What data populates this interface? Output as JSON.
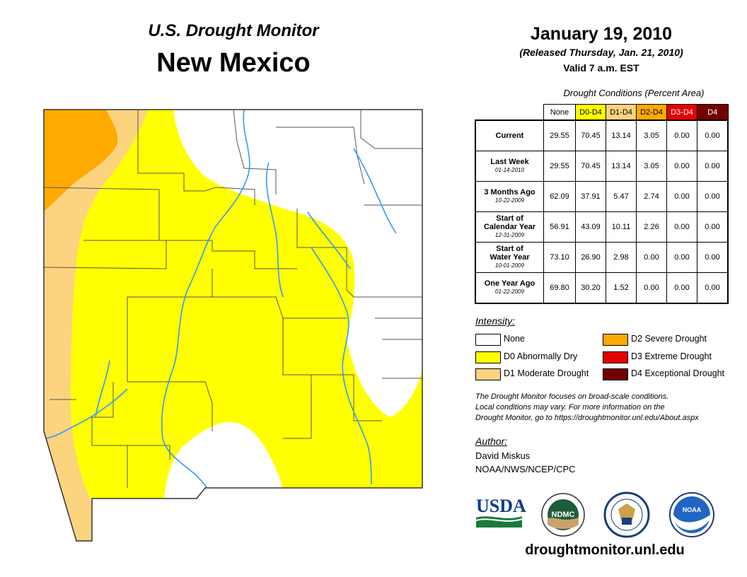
{
  "header": {
    "subtitle": "U.S. Drought Monitor",
    "title": "New Mexico",
    "date": "January 19, 2010",
    "released": "(Released Thursday, Jan. 21, 2010)",
    "valid": "Valid 7 a.m. EST"
  },
  "conditions": {
    "title": "Drought Conditions (Percent Area)",
    "columns": [
      {
        "label": "None",
        "color": "#ffffff"
      },
      {
        "label": "D0-D4",
        "color": "#ffff00"
      },
      {
        "label": "D1-D4",
        "color": "#fcd37f"
      },
      {
        "label": "D2-D4",
        "color": "#ffaa00"
      },
      {
        "label": "D3-D4",
        "color": "#e60000"
      },
      {
        "label": "D4",
        "color": "#730000"
      }
    ],
    "rows": [
      {
        "line1": "Current",
        "line2": "",
        "date": "",
        "values": [
          "29.55",
          "70.45",
          "13.14",
          "3.05",
          "0.00",
          "0.00"
        ]
      },
      {
        "line1": "Last Week",
        "line2": "",
        "date": "01-14-2010",
        "values": [
          "29.55",
          "70.45",
          "13.14",
          "3.05",
          "0.00",
          "0.00"
        ]
      },
      {
        "line1": "3 Months Ago",
        "line2": "",
        "date": "10-22-2009",
        "values": [
          "62.09",
          "37.91",
          "5.47",
          "2.74",
          "0.00",
          "0.00"
        ]
      },
      {
        "line1": "Start of",
        "line2": "Calendar Year",
        "date": "12-31-2009",
        "values": [
          "56.91",
          "43.09",
          "10.11",
          "2.26",
          "0.00",
          "0.00"
        ]
      },
      {
        "line1": "Start of",
        "line2": "Water Year",
        "date": "10-01-2009",
        "values": [
          "73.10",
          "26.90",
          "2.98",
          "0.00",
          "0.00",
          "0.00"
        ]
      },
      {
        "line1": "One Year Ago",
        "line2": "",
        "date": "01-22-2009",
        "values": [
          "69.80",
          "30.20",
          "1.52",
          "0.00",
          "0.00",
          "0.00"
        ]
      }
    ]
  },
  "legend": {
    "title": "Intensity:",
    "items": [
      {
        "label": "None",
        "color": "#ffffff"
      },
      {
        "label": "D0 Abnormally Dry",
        "color": "#ffff00"
      },
      {
        "label": "D1 Moderate Drought",
        "color": "#fcd37f"
      },
      {
        "label": "D2 Severe Drought",
        "color": "#ffaa00"
      },
      {
        "label": "D3 Extreme Drought",
        "color": "#e60000"
      },
      {
        "label": "D4 Exceptional Drought",
        "color": "#730000"
      }
    ]
  },
  "note": {
    "line1": "The Drought Monitor focuses on broad-scale conditions.",
    "line2": "Local conditions may vary. For more information on the",
    "line3": "Drought Monitor, go to https://droughtmonitor.unl.edu/About.aspx"
  },
  "author": {
    "label": "Author:",
    "name": "David Miskus",
    "org": "NOAA/NWS/NCEP/CPC"
  },
  "logos": {
    "usda": "USDA",
    "ndmc": "NDMC",
    "noaa": "NOAA"
  },
  "footer": {
    "url": "droughtmonitor.unl.edu"
  },
  "map_colors": {
    "none": "#ffffff",
    "d0": "#ffff00",
    "d1": "#fcd37f",
    "d2": "#ffaa00",
    "rivers": "#3399ff",
    "borders": "#555555"
  }
}
